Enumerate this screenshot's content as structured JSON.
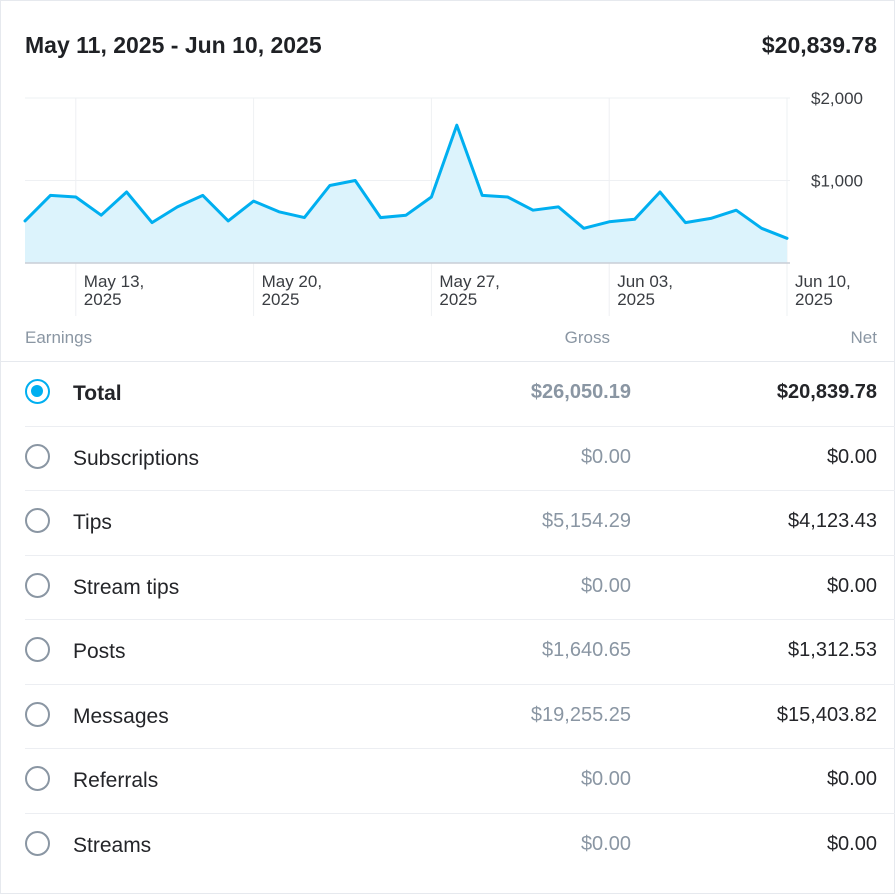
{
  "header": {
    "date_range": "May 11, 2025 - Jun 10, 2025",
    "total": "$20,839.78"
  },
  "colors": {
    "accent": "#00aff0",
    "area_fill": "#dcf3fc",
    "muted": "#8a96a3"
  },
  "chart_data": {
    "type": "area",
    "y_ticks": [
      "$2,000",
      "$1,000"
    ],
    "y_tick_values": [
      2000,
      1000
    ],
    "ylim": [
      0,
      2000
    ],
    "x_ticks": [
      {
        "line1": "May 13,",
        "line2": "2025"
      },
      {
        "line1": "May 20,",
        "line2": "2025"
      },
      {
        "line1": "May 27,",
        "line2": "2025"
      },
      {
        "line1": "Jun 03,",
        "line2": "2025"
      },
      {
        "line1": "Jun 10,",
        "line2": "2025"
      }
    ],
    "x_tick_day_index": [
      2,
      9,
      16,
      23,
      30
    ],
    "grid": true,
    "series": [
      {
        "values": [
          510,
          820,
          800,
          580,
          860,
          490,
          680,
          820,
          510,
          750,
          620,
          550,
          940,
          1000,
          550,
          580,
          800,
          1670,
          820,
          800,
          640,
          680,
          420,
          500,
          530,
          860,
          490,
          540,
          640,
          420,
          300
        ]
      }
    ]
  },
  "columns": {
    "earnings": "Earnings",
    "gross": "Gross",
    "net": "Net"
  },
  "rows": [
    {
      "label": "Total",
      "gross": "$26,050.19",
      "net": "$20,839.78",
      "selected": true
    },
    {
      "label": "Subscriptions",
      "gross": "$0.00",
      "net": "$0.00",
      "selected": false
    },
    {
      "label": "Tips",
      "gross": "$5,154.29",
      "net": "$4,123.43",
      "selected": false
    },
    {
      "label": "Stream tips",
      "gross": "$0.00",
      "net": "$0.00",
      "selected": false
    },
    {
      "label": "Posts",
      "gross": "$1,640.65",
      "net": "$1,312.53",
      "selected": false
    },
    {
      "label": "Messages",
      "gross": "$19,255.25",
      "net": "$15,403.82",
      "selected": false
    },
    {
      "label": "Referrals",
      "gross": "$0.00",
      "net": "$0.00",
      "selected": false
    },
    {
      "label": "Streams",
      "gross": "$0.00",
      "net": "$0.00",
      "selected": false
    }
  ]
}
